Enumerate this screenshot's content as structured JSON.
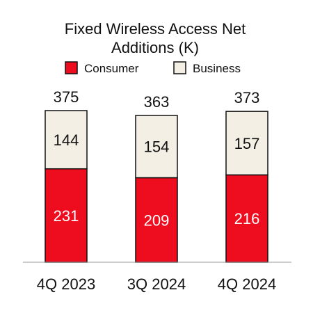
{
  "chart_data": {
    "type": "bar",
    "stacked": true,
    "title_lines": [
      "Fixed Wireless Access Net",
      "Additions (K)"
    ],
    "categories": [
      "4Q 2023",
      "3Q 2024",
      "4Q 2024"
    ],
    "series": [
      {
        "name": "Consumer",
        "values": [
          231,
          209,
          216
        ],
        "color": "#ee0d1f"
      },
      {
        "name": "Business",
        "values": [
          144,
          154,
          157
        ],
        "color": "#f3efe4"
      }
    ],
    "totals": [
      375,
      363,
      373
    ],
    "legend_placement": "top",
    "grid": false,
    "xlabel": "",
    "ylabel": ""
  },
  "colors": {
    "bar_outline": "#111111",
    "axis_line": "#999999"
  }
}
